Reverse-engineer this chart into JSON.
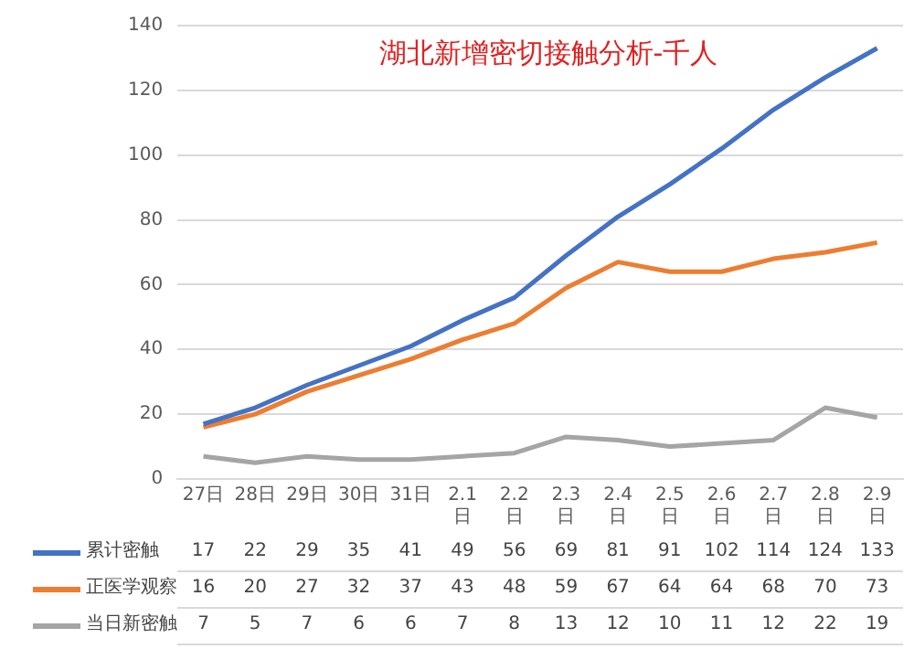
{
  "chart_data": {
    "type": "line",
    "title": "湖北新增密切接触分析-千人",
    "categories": [
      "27日",
      "28日",
      "29日",
      "30日",
      "31日",
      "2.1日",
      "2.2日",
      "2.3日",
      "2.4日",
      "2.5日",
      "2.6日",
      "2.7日",
      "2.8日",
      "2.9日"
    ],
    "series": [
      {
        "name": "累计密触",
        "color": "#4472c4",
        "values": [
          17,
          22,
          29,
          35,
          41,
          49,
          56,
          69,
          81,
          91,
          102,
          114,
          124,
          133
        ]
      },
      {
        "name": "正医学观察",
        "color": "#ed7d31",
        "values": [
          16,
          20,
          27,
          32,
          37,
          43,
          48,
          59,
          67,
          64,
          64,
          68,
          70,
          73
        ]
      },
      {
        "name": "当日新密触",
        "color": "#a5a5a5",
        "values": [
          7,
          5,
          7,
          6,
          6,
          7,
          8,
          13,
          12,
          10,
          11,
          12,
          22,
          19
        ]
      }
    ],
    "ylim": [
      0,
      140
    ],
    "yticks": [
      0,
      20,
      40,
      60,
      80,
      100,
      120,
      140
    ],
    "grid": "y",
    "legend": "bottom",
    "data_labels": true,
    "marker": "none",
    "line_style": "solid"
  }
}
